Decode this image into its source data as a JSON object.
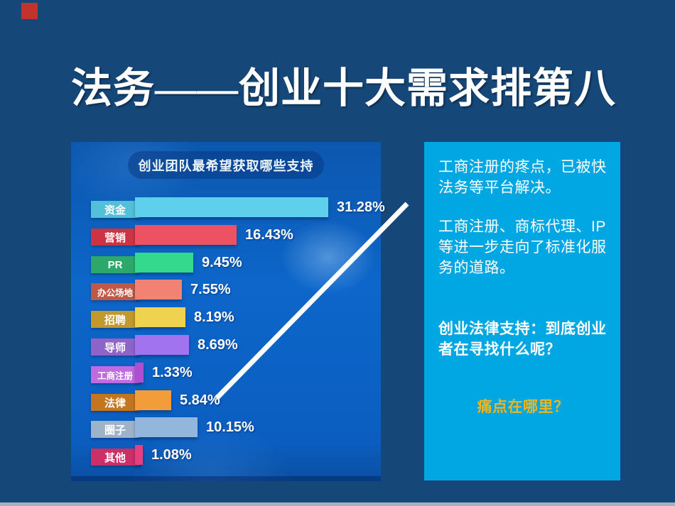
{
  "slide": {
    "title": "法务——创业十大需求排第八",
    "background_color": "#154779",
    "accent_square_color": "#C2332E"
  },
  "chart_data": {
    "type": "bar",
    "orientation": "horizontal",
    "title": "创业团队最希望获取哪些支持",
    "categories": [
      "资金",
      "营销",
      "PR",
      "办公场地",
      "招聘",
      "导师",
      "工商注册",
      "法律",
      "圈子",
      "其他"
    ],
    "values": [
      31.28,
      16.43,
      9.45,
      7.55,
      8.19,
      8.69,
      1.33,
      5.84,
      10.15,
      1.08
    ],
    "value_labels": [
      "31.28%",
      "16.43%",
      "9.45%",
      "7.55%",
      "8.19%",
      "8.69%",
      "1.33%",
      "5.84%",
      "10.15%",
      "1.08%"
    ],
    "bar_colors": [
      "#5ED0EC",
      "#EC5262",
      "#35D98D",
      "#F28272",
      "#EFD34F",
      "#A273EE",
      "#AE4FD2",
      "#F39C3A",
      "#93B7DC",
      "#E5407E"
    ],
    "tag_colors": [
      "#53BFD9",
      "#CE3344",
      "#2CA86A",
      "#C05848",
      "#C3992B",
      "#8E64C8",
      "#C06CE0",
      "#C4761F",
      "#9FB3C8",
      "#CC2E66"
    ],
    "xlabel": "",
    "ylabel": "",
    "unit": "%",
    "xlim": [
      0,
      35
    ],
    "grid": false,
    "legend": false,
    "background_color": "#0D66CA"
  },
  "textbox": {
    "background_color": "#00A7E2",
    "paragraph1": "工商注册的疼点，已被快法务等平台解决。",
    "paragraph2": "工商注册、商标代理、IP等进一步走向了标准化服务的道路。",
    "paragraph3": "创业法律支持：到底创业者在寻找什么呢？",
    "highlight": "痛点在哪里？",
    "highlight_color": "#F0B41E"
  }
}
